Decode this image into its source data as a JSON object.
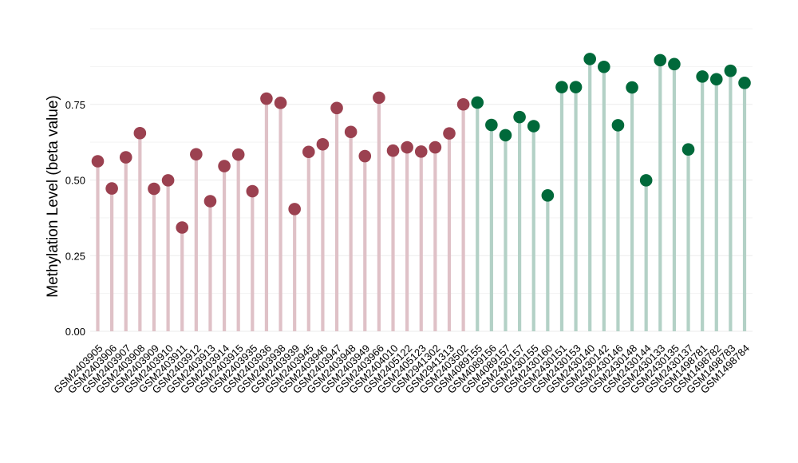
{
  "chart_data": {
    "type": "lollipop",
    "title": "",
    "xlabel": "",
    "ylabel": "Methylation Level (beta value)",
    "ylim": [
      0,
      0.93
    ],
    "yticks": [
      0.0,
      0.25,
      0.5,
      0.75
    ],
    "ytick_labels": [
      "0.00",
      "0.25",
      "0.50",
      "0.75"
    ],
    "grid": true,
    "legend": "none",
    "groups": [
      {
        "color": "#9b4150",
        "stem_color": "#dfc1c7"
      },
      {
        "color": "#00693a",
        "stem_color": "#b3d1c6"
      }
    ],
    "points": [
      {
        "x": "GSM2403905",
        "y": 0.562,
        "group": 0
      },
      {
        "x": "GSM2403906",
        "y": 0.472,
        "group": 0
      },
      {
        "x": "GSM2403907",
        "y": 0.575,
        "group": 0
      },
      {
        "x": "GSM2403908",
        "y": 0.655,
        "group": 0
      },
      {
        "x": "GSM2403909",
        "y": 0.471,
        "group": 0
      },
      {
        "x": "GSM2403910",
        "y": 0.499,
        "group": 0
      },
      {
        "x": "GSM2403911",
        "y": 0.343,
        "group": 0
      },
      {
        "x": "GSM2403912",
        "y": 0.585,
        "group": 0
      },
      {
        "x": "GSM2403913",
        "y": 0.43,
        "group": 0
      },
      {
        "x": "GSM2403914",
        "y": 0.546,
        "group": 0
      },
      {
        "x": "GSM2403915",
        "y": 0.584,
        "group": 0
      },
      {
        "x": "GSM2403935",
        "y": 0.463,
        "group": 0
      },
      {
        "x": "GSM2403936",
        "y": 0.769,
        "group": 0
      },
      {
        "x": "GSM2403938",
        "y": 0.755,
        "group": 0
      },
      {
        "x": "GSM2403939",
        "y": 0.404,
        "group": 0
      },
      {
        "x": "GSM2403945",
        "y": 0.593,
        "group": 0
      },
      {
        "x": "GSM2403946",
        "y": 0.618,
        "group": 0
      },
      {
        "x": "GSM2403947",
        "y": 0.738,
        "group": 0
      },
      {
        "x": "GSM2403948",
        "y": 0.659,
        "group": 0
      },
      {
        "x": "GSM2403949",
        "y": 0.579,
        "group": 0
      },
      {
        "x": "GSM2403966",
        "y": 0.772,
        "group": 0
      },
      {
        "x": "GSM2404010",
        "y": 0.597,
        "group": 0
      },
      {
        "x": "GSM2405122",
        "y": 0.608,
        "group": 0
      },
      {
        "x": "GSM2405123",
        "y": 0.594,
        "group": 0
      },
      {
        "x": "GSM2941302",
        "y": 0.608,
        "group": 0
      },
      {
        "x": "GSM2941313",
        "y": 0.654,
        "group": 0
      },
      {
        "x": "GSM2403502",
        "y": 0.75,
        "group": 0
      },
      {
        "x": "GSM4089155",
        "y": 0.756,
        "group": 1
      },
      {
        "x": "GSM4089156",
        "y": 0.682,
        "group": 1
      },
      {
        "x": "GSM4089157",
        "y": 0.648,
        "group": 1
      },
      {
        "x": "GSM2430157",
        "y": 0.708,
        "group": 1
      },
      {
        "x": "GSM2430155",
        "y": 0.678,
        "group": 1
      },
      {
        "x": "GSM2430160",
        "y": 0.449,
        "group": 1
      },
      {
        "x": "GSM2430151",
        "y": 0.807,
        "group": 1
      },
      {
        "x": "GSM2430153",
        "y": 0.807,
        "group": 1
      },
      {
        "x": "GSM2430140",
        "y": 0.9,
        "group": 1
      },
      {
        "x": "GSM2430142",
        "y": 0.874,
        "group": 1
      },
      {
        "x": "GSM2430146",
        "y": 0.681,
        "group": 1
      },
      {
        "x": "GSM2430148",
        "y": 0.806,
        "group": 1
      },
      {
        "x": "GSM2430144",
        "y": 0.499,
        "group": 1
      },
      {
        "x": "GSM2430133",
        "y": 0.896,
        "group": 1
      },
      {
        "x": "GSM2430135",
        "y": 0.883,
        "group": 1
      },
      {
        "x": "GSM2430137",
        "y": 0.601,
        "group": 1
      },
      {
        "x": "GSM1498781",
        "y": 0.842,
        "group": 1
      },
      {
        "x": "GSM1498782",
        "y": 0.833,
        "group": 1
      },
      {
        "x": "GSM1498783",
        "y": 0.861,
        "group": 1
      },
      {
        "x": "GSM1498784",
        "y": 0.821,
        "group": 1
      }
    ]
  }
}
